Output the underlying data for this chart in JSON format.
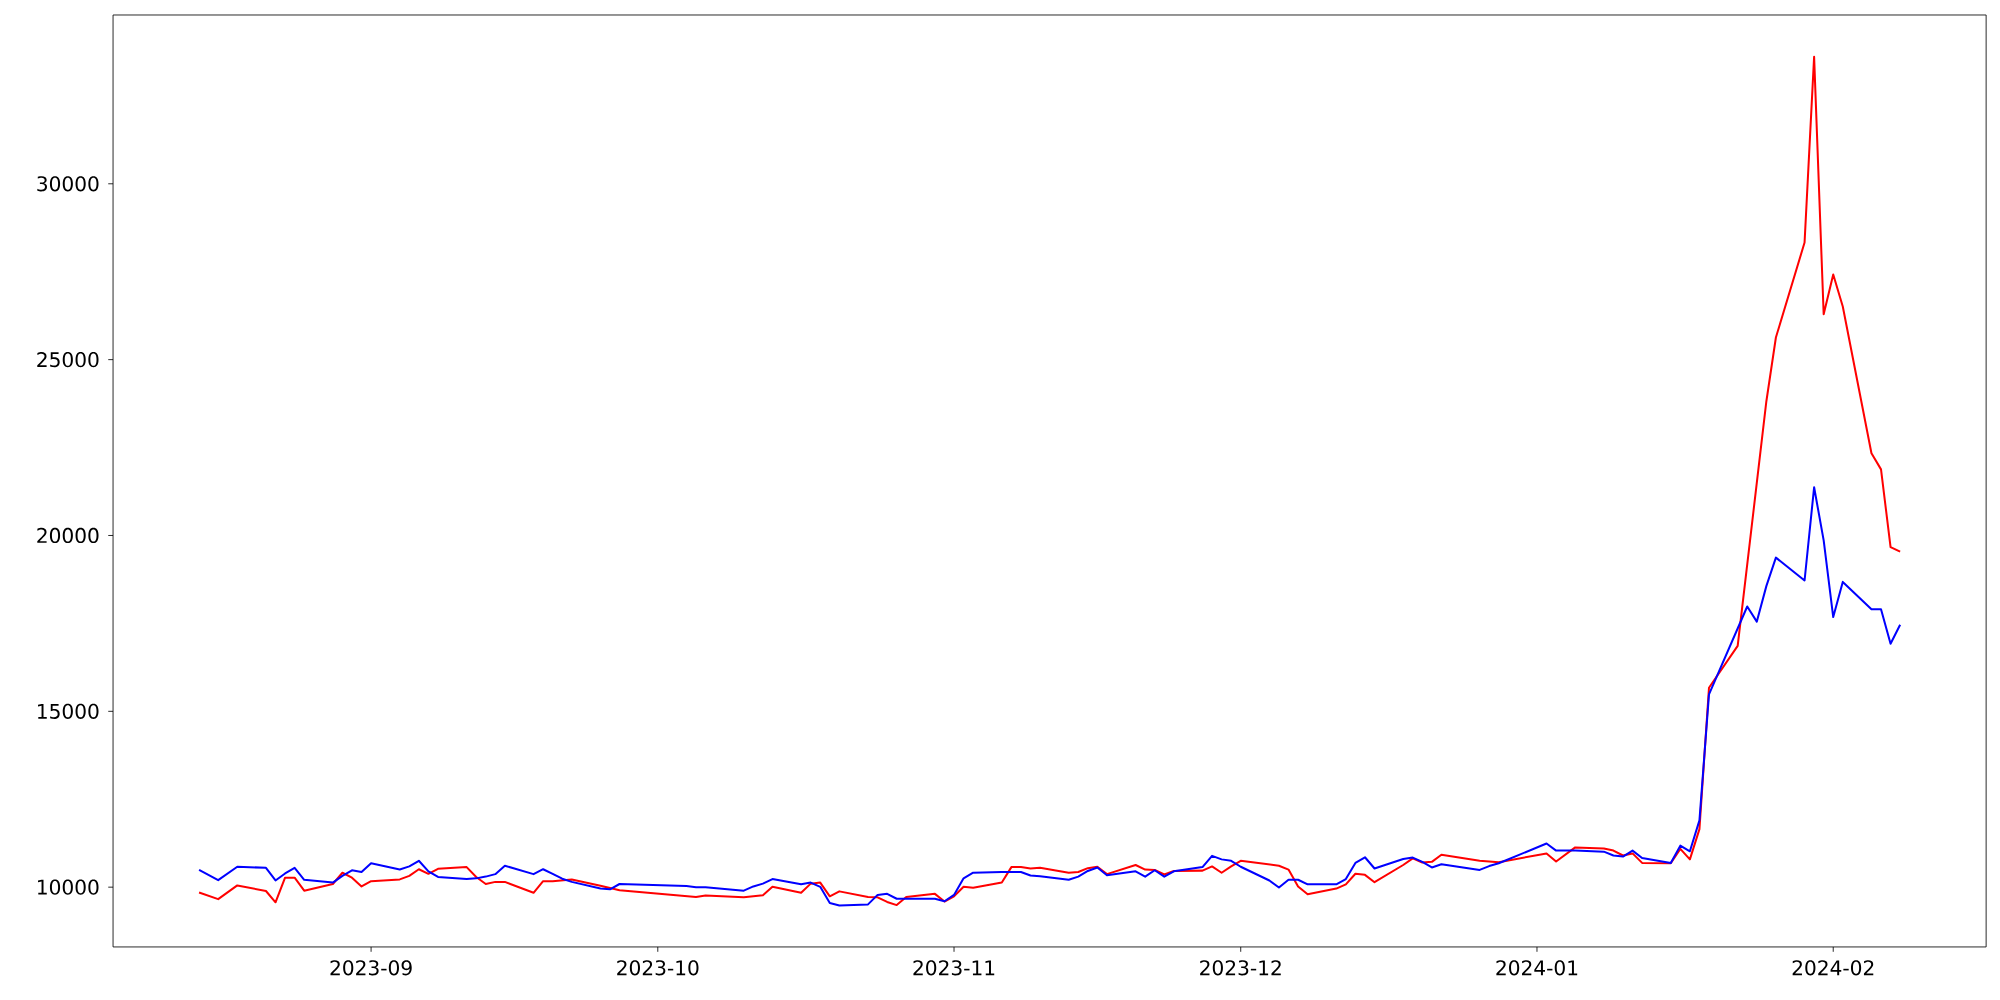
{
  "chart_data": {
    "type": "line",
    "xlim": [
      "2023-08-05",
      "2024-02-17"
    ],
    "ylim": [
      8300,
      34800
    ],
    "xticks": [
      {
        "value": "2023-09-01",
        "label": "2023-09"
      },
      {
        "value": "2023-10-01",
        "label": "2023-10"
      },
      {
        "value": "2023-11-01",
        "label": "2023-11"
      },
      {
        "value": "2023-12-01",
        "label": "2023-12"
      },
      {
        "value": "2024-01-01",
        "label": "2024-01"
      },
      {
        "value": "2024-02-01",
        "label": "2024-02"
      }
    ],
    "yticks": [
      10000,
      15000,
      20000,
      25000,
      30000
    ],
    "series": [
      {
        "color": "#ff0000",
        "x": [
          "2023-08-14",
          "2023-08-16",
          "2023-08-18",
          "2023-08-21",
          "2023-08-22",
          "2023-08-23",
          "2023-08-24",
          "2023-08-25",
          "2023-08-28",
          "2023-08-29",
          "2023-08-30",
          "2023-08-31",
          "2023-09-01",
          "2023-09-04",
          "2023-09-05",
          "2023-09-06",
          "2023-09-07",
          "2023-09-08",
          "2023-09-11",
          "2023-09-12",
          "2023-09-13",
          "2023-09-14",
          "2023-09-15",
          "2023-09-18",
          "2023-09-19",
          "2023-09-20",
          "2023-09-22",
          "2023-09-25",
          "2023-09-27",
          "2023-10-05",
          "2023-10-06",
          "2023-10-10",
          "2023-10-12",
          "2023-10-13",
          "2023-10-16",
          "2023-10-17",
          "2023-10-18",
          "2023-10-19",
          "2023-10-20",
          "2023-10-23",
          "2023-10-24",
          "2023-10-25",
          "2023-10-26",
          "2023-10-27",
          "2023-10-30",
          "2023-10-31",
          "2023-11-01",
          "2023-11-02",
          "2023-11-03",
          "2023-11-06",
          "2023-11-07",
          "2023-11-08",
          "2023-11-09",
          "2023-11-10",
          "2023-11-13",
          "2023-11-14",
          "2023-11-15",
          "2023-11-16",
          "2023-11-17",
          "2023-11-20",
          "2023-11-21",
          "2023-11-22",
          "2023-11-23",
          "2023-11-24",
          "2023-11-27",
          "2023-11-28",
          "2023-11-29",
          "2023-11-30",
          "2023-12-01",
          "2023-12-05",
          "2023-12-06",
          "2023-12-07",
          "2023-12-08",
          "2023-12-11",
          "2023-12-12",
          "2023-12-13",
          "2023-12-14",
          "2023-12-15",
          "2023-12-18",
          "2023-12-19",
          "2023-12-20",
          "2023-12-21",
          "2023-12-22",
          "2023-12-26",
          "2023-12-28",
          "2024-01-02",
          "2024-01-03",
          "2024-01-05",
          "2024-01-08",
          "2024-01-09",
          "2024-01-10",
          "2024-01-11",
          "2024-01-12",
          "2024-01-15",
          "2024-01-16",
          "2024-01-17",
          "2024-01-18",
          "2024-01-19",
          "2024-01-22",
          "2024-01-25",
          "2024-01-26",
          "2024-01-29",
          "2024-01-30",
          "2024-01-31",
          "2024-02-01",
          "2024-02-02",
          "2024-02-05",
          "2024-02-06",
          "2024-02-07",
          "2024-02-08"
        ],
        "values": [
          9850,
          9660,
          10050,
          9890,
          9570,
          10270,
          10270,
          9900,
          10090,
          10410,
          10270,
          10020,
          10170,
          10220,
          10320,
          10510,
          10380,
          10520,
          10570,
          10290,
          10090,
          10150,
          10150,
          9840,
          10170,
          10170,
          10220,
          10040,
          9910,
          9720,
          9760,
          9710,
          9770,
          10010,
          9840,
          10100,
          10130,
          9740,
          9880,
          9720,
          9710,
          9580,
          9490,
          9720,
          9810,
          9590,
          9740,
          10010,
          9980,
          10130,
          10570,
          10570,
          10530,
          10550,
          10410,
          10430,
          10540,
          10580,
          10370,
          10630,
          10500,
          10490,
          10360,
          10460,
          10470,
          10590,
          10410,
          10590,
          10750,
          10610,
          10500,
          10020,
          9800,
          9960,
          10080,
          10380,
          10350,
          10140,
          10630,
          10820,
          10700,
          10720,
          10920,
          10750,
          10710,
          10960,
          10730,
          11130,
          11100,
          11040,
          10900,
          10960,
          10690,
          10680,
          11090,
          10790,
          11650,
          15670,
          16860,
          23810,
          25630,
          28330,
          33610,
          26290,
          27420,
          26510,
          22340,
          21880,
          19670,
          19540
        ]
      },
      {
        "color": "#0000ff",
        "x": [
          "2023-08-14",
          "2023-08-16",
          "2023-08-18",
          "2023-08-21",
          "2023-08-22",
          "2023-08-23",
          "2023-08-24",
          "2023-08-25",
          "2023-08-28",
          "2023-08-29",
          "2023-08-30",
          "2023-08-31",
          "2023-09-01",
          "2023-09-04",
          "2023-09-05",
          "2023-09-06",
          "2023-09-07",
          "2023-09-08",
          "2023-09-11",
          "2023-09-12",
          "2023-09-13",
          "2023-09-14",
          "2023-09-15",
          "2023-09-18",
          "2023-09-19",
          "2023-09-20",
          "2023-09-21",
          "2023-09-22",
          "2023-09-25",
          "2023-09-26",
          "2023-09-27",
          "2023-10-04",
          "2023-10-05",
          "2023-10-06",
          "2023-10-10",
          "2023-10-11",
          "2023-10-12",
          "2023-10-13",
          "2023-10-16",
          "2023-10-17",
          "2023-10-18",
          "2023-10-19",
          "2023-10-20",
          "2023-10-23",
          "2023-10-24",
          "2023-10-25",
          "2023-10-26",
          "2023-10-27",
          "2023-10-30",
          "2023-10-31",
          "2023-11-01",
          "2023-11-02",
          "2023-11-03",
          "2023-11-06",
          "2023-11-07",
          "2023-11-08",
          "2023-11-09",
          "2023-11-10",
          "2023-11-13",
          "2023-11-14",
          "2023-11-15",
          "2023-11-16",
          "2023-11-17",
          "2023-11-20",
          "2023-11-21",
          "2023-11-22",
          "2023-11-23",
          "2023-11-24",
          "2023-11-27",
          "2023-11-28",
          "2023-11-29",
          "2023-11-30",
          "2023-12-01",
          "2023-12-04",
          "2023-12-05",
          "2023-12-06",
          "2023-12-07",
          "2023-12-08",
          "2023-12-11",
          "2023-12-12",
          "2023-12-13",
          "2023-12-14",
          "2023-12-15",
          "2023-12-18",
          "2023-12-19",
          "2023-12-20",
          "2023-12-21",
          "2023-12-22",
          "2023-12-26",
          "2023-12-27",
          "2023-12-28",
          "2024-01-02",
          "2024-01-03",
          "2024-01-05",
          "2024-01-08",
          "2024-01-09",
          "2024-01-10",
          "2024-01-11",
          "2024-01-12",
          "2024-01-15",
          "2024-01-16",
          "2024-01-17",
          "2024-01-18",
          "2024-01-19",
          "2024-01-23",
          "2024-01-24",
          "2024-01-25",
          "2024-01-26",
          "2024-01-29",
          "2024-01-30",
          "2024-01-31",
          "2024-02-01",
          "2024-02-02",
          "2024-02-05",
          "2024-02-06",
          "2024-02-07",
          "2024-02-08"
        ],
        "values": [
          10490,
          10200,
          10580,
          10550,
          10190,
          10390,
          10550,
          10210,
          10130,
          10320,
          10480,
          10430,
          10680,
          10500,
          10590,
          10750,
          10450,
          10290,
          10230,
          10250,
          10300,
          10370,
          10610,
          10370,
          10510,
          10380,
          10240,
          10150,
          9960,
          9940,
          10090,
          10030,
          10000,
          10000,
          9900,
          10020,
          10100,
          10230,
          10080,
          10130,
          10010,
          9550,
          9480,
          9510,
          9780,
          9810,
          9670,
          9670,
          9670,
          9600,
          9780,
          10250,
          10410,
          10430,
          10430,
          10430,
          10330,
          10310,
          10210,
          10300,
          10460,
          10560,
          10340,
          10450,
          10300,
          10480,
          10300,
          10450,
          10570,
          10890,
          10790,
          10750,
          10580,
          10190,
          9990,
          10210,
          10210,
          10080,
          10080,
          10230,
          10690,
          10850,
          10530,
          10800,
          10840,
          10720,
          10560,
          10650,
          10490,
          10600,
          10680,
          11240,
          11040,
          11040,
          11010,
          10900,
          10870,
          11040,
          10830,
          10690,
          11180,
          11020,
          11900,
          15480,
          17980,
          17550,
          18560,
          19370,
          18720,
          21370,
          19860,
          17680,
          18680,
          17900,
          17900,
          16920,
          17460
        ]
      }
    ]
  }
}
